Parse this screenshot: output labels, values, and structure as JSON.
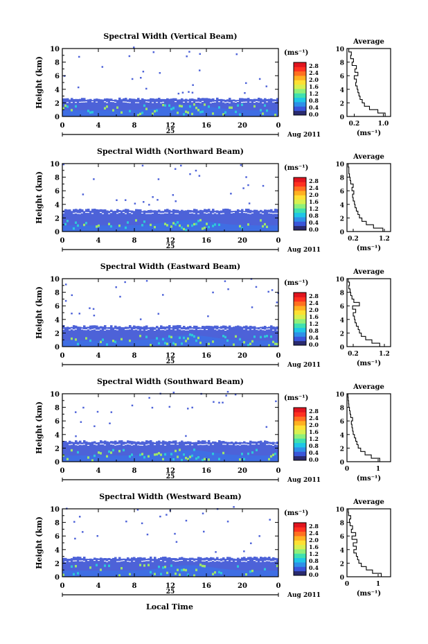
{
  "figure": {
    "xlabel_bottom": "Local Time"
  },
  "panel_common": {
    "ylabel": "Height (km)",
    "day_label": "25",
    "month_label": "Aug 2011",
    "cbar_unit": "(ms⁻¹)",
    "cbar_ticks": [
      "2.8",
      "2.4",
      "2.0",
      "1.6",
      "1.2",
      "0.8",
      "0.4",
      "0.0"
    ],
    "avg_title": "Average",
    "avg_unit": "(ms⁻¹)"
  },
  "colors": {
    "colorbar": [
      "#2a2a6e",
      "#3a55d9",
      "#2e8fe8",
      "#1fc6e6",
      "#3fe0b0",
      "#8ff07a",
      "#d8f050",
      "#ffe033",
      "#ffb020",
      "#ff7020",
      "#ff3020",
      "#e0141e"
    ],
    "bg_low": "#4d62d8",
    "bg_mid": "#3f6ee4",
    "warm": "#9ee66a"
  },
  "chart_data": [
    {
      "type": "heatmap",
      "title": "Spectral Width (Vertical Beam)",
      "x_ticks": [
        "0",
        "4",
        "8",
        "12",
        "16",
        "20",
        "0"
      ],
      "y_ticks": [
        "0",
        "2",
        "4",
        "6",
        "8",
        "10"
      ],
      "xlim": [
        0,
        24
      ],
      "ylim": [
        0,
        10
      ],
      "layer_top_km": 2.6,
      "average_profile": {
        "x_ticks": [
          "0.2",
          "1.0"
        ],
        "xlim": [
          0.0,
          1.2
        ],
        "height": [
          0,
          0.5,
          1,
          1.5,
          2,
          2.5,
          3,
          3.5,
          4,
          4.5,
          5,
          5.5,
          6,
          6.5,
          7,
          7.5,
          8,
          8.5,
          9,
          9.5,
          10
        ],
        "width": [
          1.05,
          0.85,
          0.62,
          0.48,
          0.42,
          0.36,
          0.33,
          0.3,
          0.28,
          0.24,
          0.26,
          0.2,
          0.3,
          0.22,
          0.26,
          0.14,
          0.18,
          0.1,
          0.12,
          0.05,
          0.05
        ]
      }
    },
    {
      "type": "heatmap",
      "title": "Spectral Width (Northward Beam)",
      "x_ticks": [
        "0",
        "4",
        "8",
        "12",
        "16",
        "20",
        "0"
      ],
      "y_ticks": [
        "0",
        "2",
        "4",
        "6",
        "8",
        "10"
      ],
      "xlim": [
        0,
        24
      ],
      "ylim": [
        0,
        10
      ],
      "layer_top_km": 3.2,
      "average_profile": {
        "x_ticks": [
          "0.2",
          "1.2"
        ],
        "xlim": [
          0.0,
          1.4
        ],
        "height": [
          0,
          0.5,
          1,
          1.5,
          2,
          2.5,
          3,
          3.5,
          4,
          4.5,
          5,
          5.5,
          6,
          6.5,
          7,
          7.5,
          8,
          8.5,
          9,
          9.5,
          10
        ],
        "width": [
          1.15,
          0.85,
          0.62,
          0.48,
          0.4,
          0.35,
          0.3,
          0.26,
          0.24,
          0.2,
          0.18,
          0.22,
          0.16,
          0.2,
          0.12,
          0.1,
          0.08,
          0.06,
          0.06,
          0.04,
          0.04
        ]
      }
    },
    {
      "type": "heatmap",
      "title": "Spectral Width (Eastward Beam)",
      "x_ticks": [
        "0",
        "4",
        "8",
        "12",
        "16",
        "20",
        "0"
      ],
      "y_ticks": [
        "0",
        "2",
        "4",
        "6",
        "8",
        "10"
      ],
      "xlim": [
        0,
        24
      ],
      "ylim": [
        0,
        10
      ],
      "layer_top_km": 3.0,
      "average_profile": {
        "x_ticks": [
          "0.2",
          "1.2"
        ],
        "xlim": [
          0.0,
          1.4
        ],
        "height": [
          0,
          0.5,
          1,
          1.5,
          2,
          2.5,
          3,
          3.5,
          4,
          4.5,
          5,
          5.5,
          6,
          6.5,
          7,
          7.5,
          8,
          8.5,
          9,
          9.5,
          10
        ],
        "width": [
          1.05,
          0.8,
          0.6,
          0.46,
          0.4,
          0.36,
          0.3,
          0.26,
          0.24,
          0.2,
          0.28,
          0.18,
          0.4,
          0.22,
          0.16,
          0.12,
          0.1,
          0.06,
          0.08,
          0.04,
          0.04
        ]
      }
    },
    {
      "type": "heatmap",
      "title": "Spectral Width (Southward Beam)",
      "x_ticks": [
        "0",
        "4",
        "8",
        "12",
        "16",
        "20",
        "0"
      ],
      "y_ticks": [
        "0",
        "2",
        "4",
        "6",
        "8",
        "10"
      ],
      "xlim": [
        0,
        24
      ],
      "ylim": [
        0,
        10
      ],
      "layer_top_km": 3.0,
      "average_profile": {
        "x_ticks": [
          "0",
          "1"
        ],
        "xlim": [
          0.0,
          1.4
        ],
        "height": [
          0,
          0.5,
          1,
          1.5,
          2,
          2.5,
          3,
          3.5,
          4,
          4.5,
          5,
          5.5,
          6,
          6.5,
          7,
          7.5,
          8,
          8.5,
          9,
          9.5,
          10
        ],
        "width": [
          1.05,
          0.78,
          0.58,
          0.44,
          0.36,
          0.32,
          0.28,
          0.24,
          0.2,
          0.18,
          0.16,
          0.14,
          0.18,
          0.12,
          0.1,
          0.08,
          0.06,
          0.05,
          0.04,
          0.03,
          0.03
        ]
      }
    },
    {
      "type": "heatmap",
      "title": "Spectral Width (Westward Beam)",
      "x_ticks": [
        "0",
        "4",
        "8",
        "12",
        "16",
        "20",
        "0"
      ],
      "y_ticks": [
        "0",
        "2",
        "4",
        "6",
        "8",
        "10"
      ],
      "xlim": [
        0,
        24
      ],
      "ylim": [
        0,
        10
      ],
      "layer_top_km": 2.8,
      "average_profile": {
        "x_ticks": [
          "0",
          "1"
        ],
        "xlim": [
          0.0,
          1.4
        ],
        "height": [
          0,
          0.5,
          1,
          1.5,
          2,
          2.5,
          3,
          3.5,
          4,
          4.5,
          5,
          5.5,
          6,
          6.5,
          7,
          7.5,
          8,
          8.5,
          9,
          9.5,
          10
        ],
        "width": [
          1.1,
          0.82,
          0.62,
          0.46,
          0.38,
          0.34,
          0.3,
          0.22,
          0.3,
          0.2,
          0.32,
          0.16,
          0.28,
          0.14,
          0.18,
          0.1,
          0.08,
          0.12,
          0.05,
          0.04,
          0.04
        ]
      }
    }
  ]
}
